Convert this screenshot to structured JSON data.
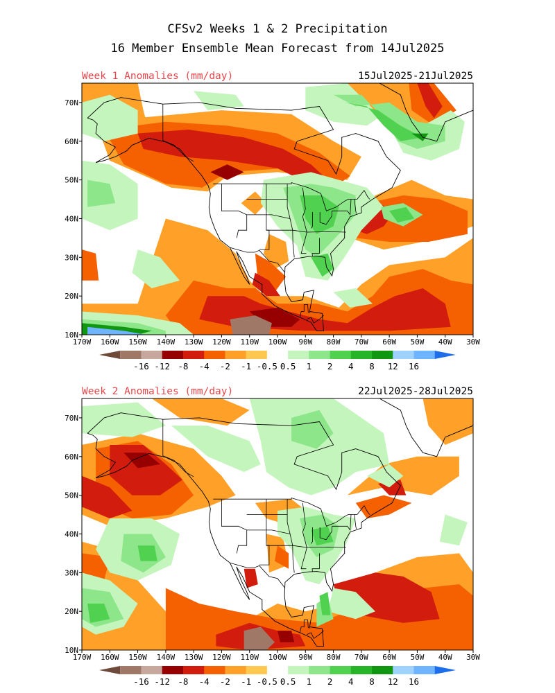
{
  "title": {
    "line1": "CFSv2 Weeks 1 & 2 Precipitation",
    "line2": "16 Member Ensemble Mean Forecast from 14Jul2025"
  },
  "panels": [
    {
      "label": "Week 1 Anomalies (mm/day)",
      "dates": "15Jul2025-21Jul2025",
      "label_color": "#e8464b"
    },
    {
      "label": "Week 2 Anomalies (mm/day)",
      "dates": "22Jul2025-28Jul2025",
      "label_color": "#e8464b"
    }
  ],
  "map": {
    "lon_range": [
      -170,
      -30
    ],
    "lat_range": [
      10,
      75
    ],
    "lat_ticks": [
      "10N",
      "20N",
      "30N",
      "40N",
      "50N",
      "60N",
      "70N"
    ],
    "lon_ticks": [
      "170W",
      "160W",
      "150W",
      "140W",
      "130W",
      "120W",
      "110W",
      "100W",
      "90W",
      "80W",
      "70W",
      "60W",
      "50W",
      "40W",
      "30W"
    ]
  },
  "colorbar": {
    "labels": [
      "-16",
      "-12",
      "-8",
      "-4",
      "-2",
      "-1",
      "-0.5",
      "0.5",
      "1",
      "2",
      "4",
      "8",
      "12",
      "16"
    ],
    "colors": [
      "#6e4a3a",
      "#a07868",
      "#c8a89c",
      "#960000",
      "#d21c0e",
      "#f56000",
      "#ffa028",
      "#ffc850",
      "#ffffff",
      "#c4f5bc",
      "#8ee68a",
      "#50d250",
      "#28b428",
      "#109610",
      "#a0d2ff",
      "#6eb4ff",
      "#1e6eeb"
    ]
  },
  "legend_colors": {
    "strong_dry": "#a07868",
    "very_dry": "#960000",
    "dry": "#d21c0e",
    "mod_dry": "#f56000",
    "light_dry": "#ffa028",
    "light_wet": "#c4f5bc",
    "wet": "#8ee68a",
    "mod_wet": "#50d250",
    "very_wet": "#109610",
    "extreme_wet": "#6eb4ff"
  }
}
